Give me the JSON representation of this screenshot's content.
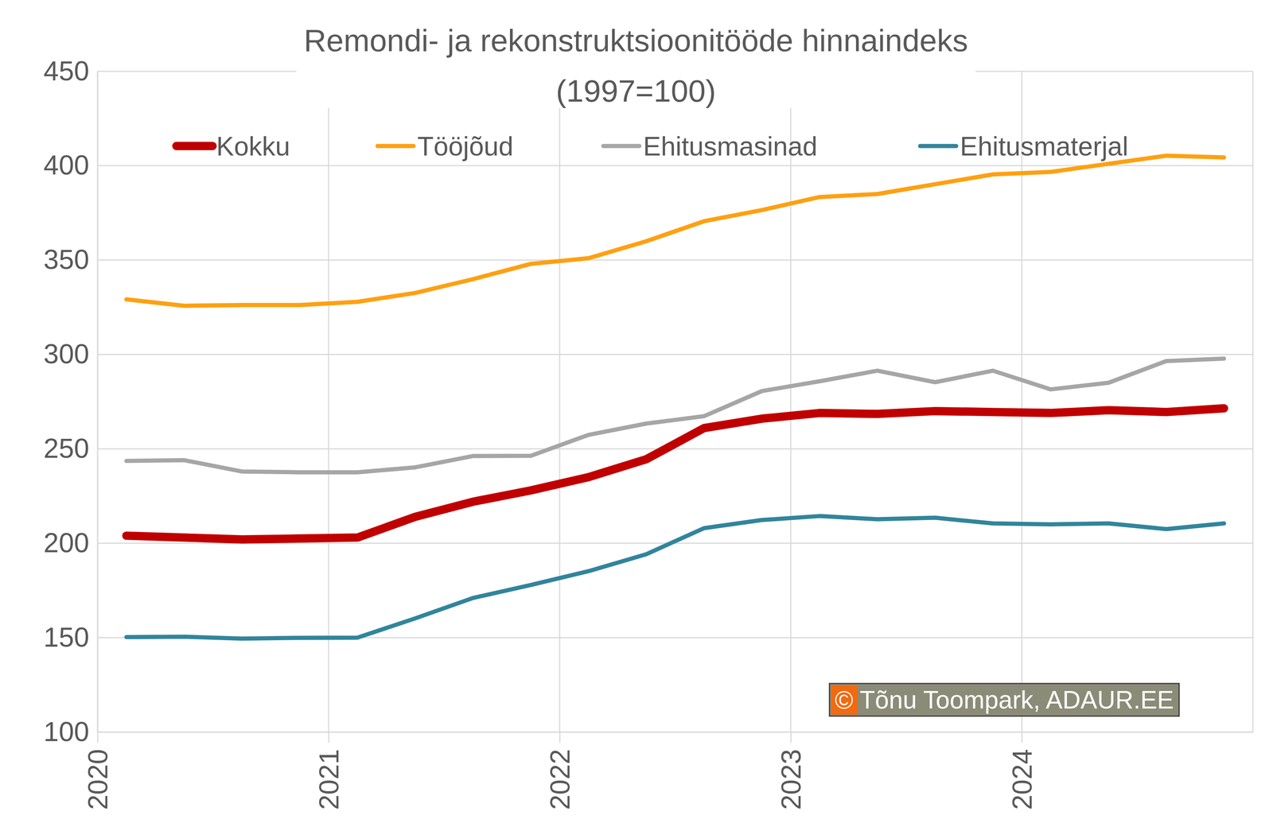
{
  "chart_data": {
    "type": "line",
    "title": "Remondi- ja rekonstruktsioonitööde hinnaindeks",
    "subtitle": "(1997=100)",
    "x": [
      2020.125,
      2020.375,
      2020.625,
      2020.875,
      2021.125,
      2021.375,
      2021.625,
      2021.875,
      2022.125,
      2022.375,
      2022.625,
      2022.875,
      2023.125,
      2023.375,
      2023.625,
      2023.875,
      2024.125,
      2024.375,
      2024.625,
      2024.875
    ],
    "xlim": [
      2020,
      2025
    ],
    "xticks": [
      2020,
      2021,
      2022,
      2023,
      2024
    ],
    "ylim": [
      100,
      450
    ],
    "yticks": [
      100,
      150,
      200,
      250,
      300,
      350,
      400,
      450
    ],
    "grid": true,
    "legend": "top",
    "series": [
      {
        "name": "Kokku",
        "color": "#c00000",
        "values": [
          204,
          203,
          202,
          202.5,
          203,
          214,
          222,
          228,
          235,
          244.5,
          261,
          266,
          269,
          268.5,
          270,
          269.5,
          269,
          270.5,
          269.5,
          271.5
        ]
      },
      {
        "name": "Tööjõud",
        "color": "#ffa010",
        "values": [
          329.2,
          325.8,
          326.2,
          326.2,
          327.9,
          332.6,
          339.9,
          348,
          351,
          360,
          370.6,
          376.5,
          383.4,
          385,
          390.2,
          395.4,
          396.7,
          401,
          405.3,
          404.4
        ]
      },
      {
        "name": "Ehitusmasinad",
        "color": "#a6a6a6",
        "values": [
          243.6,
          244,
          238,
          237.6,
          237.6,
          240.2,
          246.2,
          246.3,
          257.4,
          263.4,
          267.3,
          280.6,
          285.8,
          291.4,
          285.3,
          291.4,
          281.5,
          285,
          296.5,
          297.8
        ]
      },
      {
        "name": "Ehitusmaterjal",
        "color": "#31859c",
        "values": [
          150.3,
          150.5,
          149.5,
          149.9,
          150,
          160.2,
          171,
          177.9,
          185.2,
          194.2,
          208,
          212.3,
          214.4,
          212.7,
          213.5,
          210.5,
          210,
          210.5,
          207.5,
          210.5
        ]
      }
    ],
    "annotations": [
      {
        "text": "© Tõnu Toompark, ADAUR.EE"
      }
    ]
  }
}
